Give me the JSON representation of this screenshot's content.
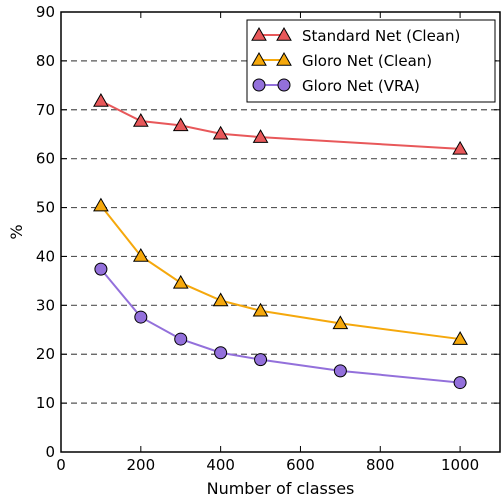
{
  "chart_data": {
    "type": "line",
    "title": "",
    "xlabel": "Number of classes",
    "ylabel": "%",
    "xlim": [
      0,
      1100
    ],
    "ylim": [
      0,
      90
    ],
    "xticks": [
      0,
      200,
      400,
      600,
      800,
      1000
    ],
    "yticks": [
      0,
      10,
      20,
      30,
      40,
      50,
      60,
      70,
      80,
      90
    ],
    "grid": "horizontal dashed",
    "legend_position": "top-right",
    "series": [
      {
        "name": "Standard Net (Clean)",
        "marker": "triangle",
        "color": "#e8585a",
        "marker_fill": "#e8585a",
        "x": [
          100,
          200,
          300,
          400,
          500,
          1000
        ],
        "y": [
          71.8,
          67.7,
          66.8,
          65.1,
          64.4,
          62.0
        ]
      },
      {
        "name": "Gloro Net (Clean)",
        "marker": "triangle",
        "color": "#f5a80c",
        "marker_fill": "#f5a80c",
        "x": [
          100,
          200,
          300,
          400,
          500,
          700,
          1000
        ],
        "y": [
          50.4,
          40.1,
          34.6,
          31.0,
          28.9,
          26.3,
          23.1
        ]
      },
      {
        "name": "Gloro Net (VRA)",
        "marker": "circle",
        "color": "#9370db",
        "marker_fill": "#9370db",
        "x": [
          100,
          200,
          300,
          400,
          500,
          700,
          1000
        ],
        "y": [
          37.4,
          27.6,
          23.1,
          20.3,
          18.9,
          16.6,
          14.2
        ]
      }
    ]
  }
}
